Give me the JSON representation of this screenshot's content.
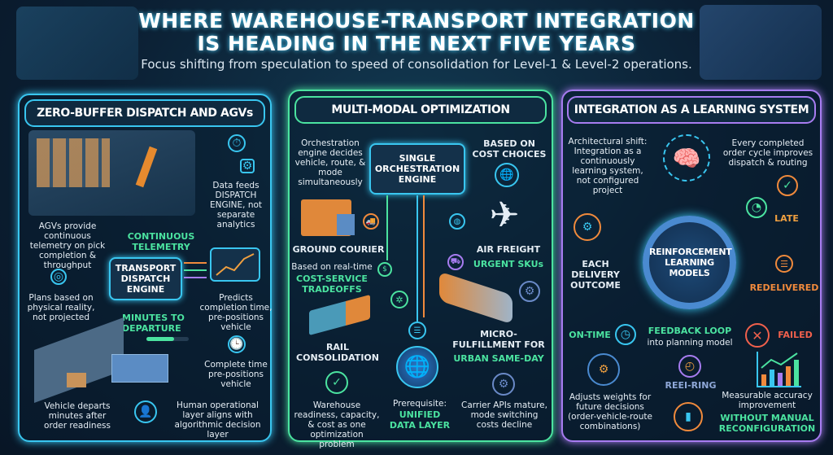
{
  "header": {
    "title_line1": "WHERE WAREHOUSE-TRANSPORT INTEGRATION",
    "title_line2": "IS HEADING IN THE NEXT FIVE YEARS",
    "subtitle": "Focus shifting from speculation to speed of consolidation for Level-1 & Level-2 operations."
  },
  "panel1": {
    "title": "ZERO-BUFFER DISPATCH AND AGVs",
    "data_feeds": "Data feeds DISPATCH ENGINE, not separate analytics",
    "agvs": "AGVs provide continuous telemetry on pick completion & throughput",
    "telemetry": "CONTINUOUS TELEMETRY",
    "engine": "TRANSPORT DISPATCH ENGINE",
    "plans": "Plans based on physical reality, not projected",
    "predicts": "Predicts completion time, pre-positions vehicle",
    "minutes": "MINUTES TO DEPARTURE",
    "departure_progress": 0.65,
    "complete": "Complete time pre-positions vehicle",
    "departs": "Vehicle departs minutes after order readiness",
    "human": "Human operational layer aligns with algorithmic decision layer"
  },
  "panel2": {
    "title": "MULTI-MODAL OPTIMIZATION",
    "orchestration_note": "Orchestration engine decides vehicle, route, & mode simultaneously",
    "engine": "SINGLE ORCHESTRATION ENGINE",
    "cost_choices": "BASED ON COST CHOICES",
    "ground": "GROUND COURIER",
    "air": "AIR FREIGHT",
    "urgent": "URGENT SKUs",
    "realtime": "Based on real-time",
    "tradeoffs": "COST-SERVICE TRADEOFFS",
    "rail": "RAIL CONSOLIDATION",
    "micro": "MICRO-FULFILLMENT FOR",
    "urban": "URBAN SAME-DAY",
    "warehouse": "Warehouse readiness, capacity, & cost as one optimization problem",
    "prereq": "Prerequisite:",
    "unified": "UNIFIED DATA LAYER",
    "carrier": "Carrier APIs mature, mode switching costs decline"
  },
  "panel3": {
    "title": "INTEGRATION AS A LEARNING SYSTEM",
    "shift": "Architectural shift: Integration as a continuously learning system, not configured project",
    "every": "Every completed order cycle improves dispatch & routing",
    "late": "LATE",
    "each": "EACH DELIVERY OUTCOME",
    "models": "REINFORCEMENT LEARNING MODELS",
    "redelivered": "REDELIVERED",
    "ontime": "ON-TIME",
    "feedback": "FEEDBACK LOOP",
    "feedback_sub": "into planning model",
    "failed": "FAILED",
    "rerouting": "REEI-RING",
    "adjusts": "Adjusts weights for future decisions (order-vehicle-route combinations)",
    "measurable": "Measurable accuracy improvement",
    "without": "WITHOUT MANUAL RECONFIGURATION"
  },
  "colors": {
    "cyan": "#39c6f0",
    "green": "#4be3a0",
    "purple": "#a77cf0",
    "orange": "#f08a3c",
    "red": "#f0604c"
  }
}
